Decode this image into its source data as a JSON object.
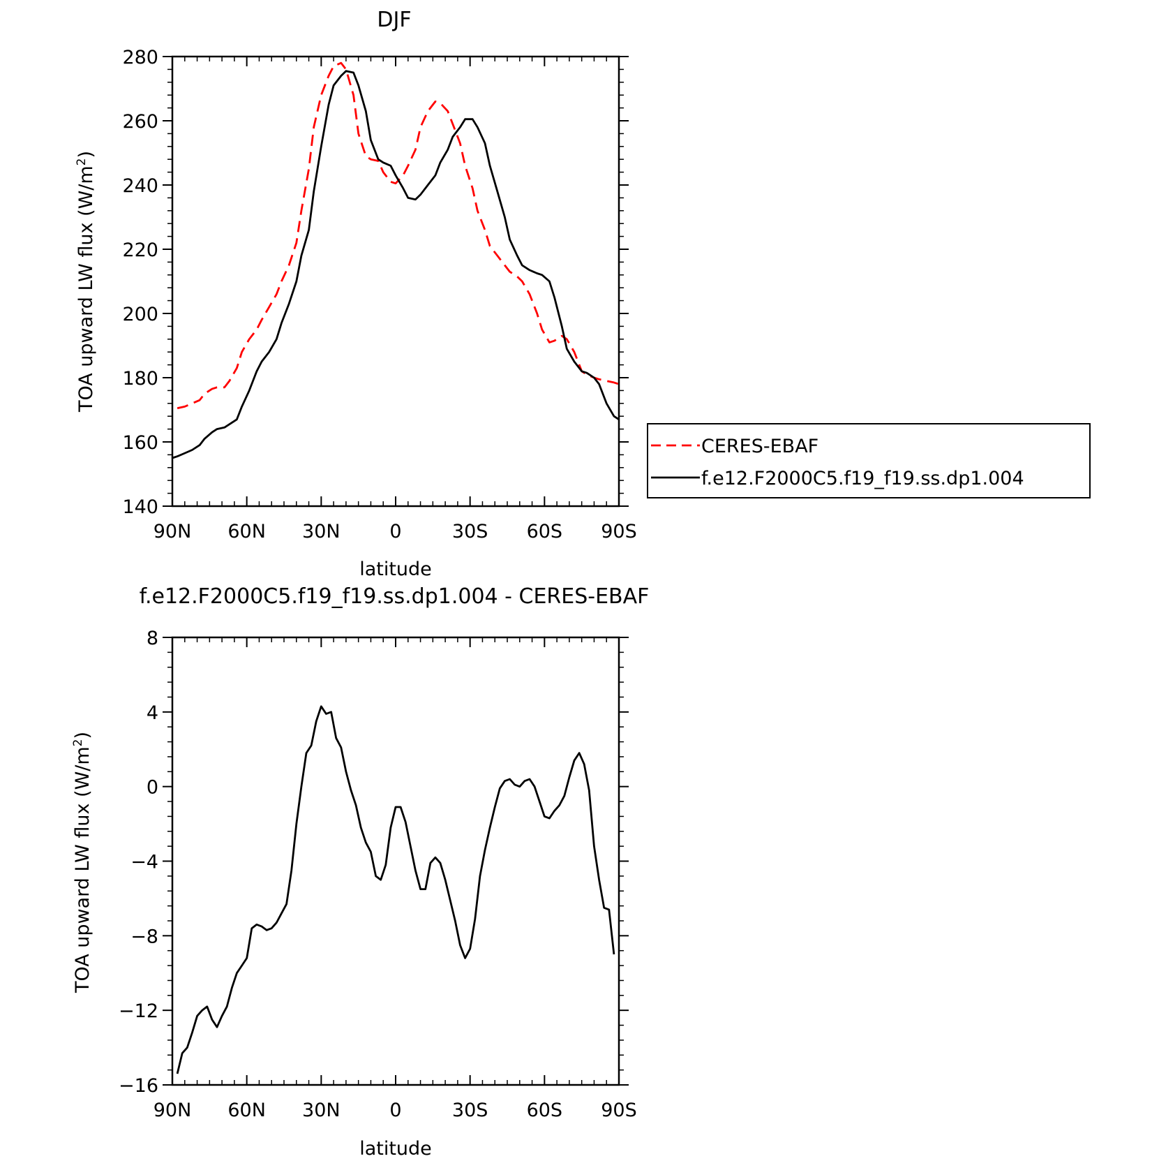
{
  "chart_data": [
    {
      "type": "line",
      "title": "DJF",
      "xlabel": "latitude",
      "ylabel_main": "TOA upward LW flux (W/m",
      "ylabel_sup": "2",
      "ylabel_close": ")",
      "xlim": [
        90,
        -90
      ],
      "ylim": [
        140,
        280
      ],
      "x_tick_values": [
        90,
        60,
        30,
        0,
        -30,
        -60,
        -90
      ],
      "x_tick_labels": [
        "90N",
        "60N",
        "30N",
        "0",
        "30S",
        "60S",
        "90S"
      ],
      "y_tick_values": [
        140,
        160,
        180,
        200,
        220,
        240,
        260,
        280
      ],
      "y_tick_labels": [
        "140",
        "160",
        "180",
        "200",
        "220",
        "240",
        "260",
        "280"
      ],
      "legend": {
        "position": "right",
        "entries": [
          "CERES-EBAF",
          "f.e12.F2000C5.f19_f19.ss.dp1.004"
        ]
      },
      "series": [
        {
          "name": "CERES-EBAF",
          "color": "#ff0000",
          "dash": "dashed",
          "x": [
            88,
            85,
            82,
            79,
            77,
            74,
            72,
            69,
            67,
            64,
            62,
            59,
            56,
            54,
            51,
            48,
            46,
            43,
            40,
            38,
            35,
            33,
            30,
            27,
            25,
            22,
            20,
            17,
            15,
            12,
            10,
            7,
            5,
            2,
            0,
            -3,
            -5,
            -8,
            -10,
            -13,
            -16,
            -18,
            -21,
            -23,
            -26,
            -28,
            -31,
            -33,
            -36,
            -38,
            -41,
            -44,
            -46,
            -49,
            -51,
            -54,
            -57,
            -59,
            -62,
            -64,
            -67,
            -69,
            -72,
            -75,
            -77,
            -80,
            -82,
            -85,
            -88,
            -90
          ],
          "y": [
            170.5,
            171,
            172,
            173,
            175,
            176.5,
            177,
            177,
            179,
            183,
            188,
            192,
            195,
            198,
            202,
            206,
            210,
            215,
            222,
            232,
            245,
            258,
            268,
            274,
            277,
            278,
            276,
            268,
            256,
            249,
            248,
            247.5,
            244,
            241,
            240.5,
            243,
            246,
            251,
            258,
            263,
            266,
            265.5,
            263,
            259,
            253,
            246,
            239,
            232,
            226,
            221,
            218,
            215,
            213,
            211.5,
            210,
            206,
            200,
            195,
            191,
            191.5,
            193,
            192,
            188,
            182,
            181,
            180,
            179.5,
            179,
            178.5,
            178
          ]
        },
        {
          "name": "f.e12.F2000C5.f19_f19.ss.dp1.004",
          "color": "#000000",
          "dash": "solid",
          "x": [
            90,
            88,
            85,
            82,
            79,
            77,
            74,
            72,
            69,
            67,
            64,
            62,
            59,
            56,
            54,
            51,
            48,
            46,
            43,
            40,
            38,
            35,
            33,
            30,
            27,
            25,
            22,
            20,
            17,
            15,
            12,
            10,
            7,
            5,
            2,
            0,
            -3,
            -5,
            -8,
            -10,
            -13,
            -16,
            -18,
            -21,
            -23,
            -26,
            -28,
            -31,
            -33,
            -36,
            -38,
            -41,
            -44,
            -46,
            -49,
            -51,
            -54,
            -57,
            -59,
            -62,
            -64,
            -67,
            -69,
            -72,
            -75,
            -77,
            -80,
            -82,
            -85,
            -88,
            -90
          ],
          "y": [
            155,
            155.5,
            156.5,
            157.5,
            159,
            161,
            163,
            164,
            164.5,
            165.5,
            167,
            171,
            176,
            182,
            185,
            188,
            192,
            197,
            203,
            210,
            218,
            226,
            238,
            252,
            265,
            271,
            274,
            275.5,
            275,
            271,
            263,
            254,
            248,
            247,
            246,
            243,
            239,
            236,
            235.5,
            237,
            240,
            243,
            247,
            251,
            255,
            258,
            260.5,
            260.5,
            258,
            253,
            246,
            238,
            230,
            223,
            218,
            215,
            213.5,
            212.5,
            212,
            210,
            205,
            196,
            189,
            185,
            182,
            181.5,
            180,
            178,
            172,
            168,
            167
          ]
        }
      ]
    },
    {
      "type": "line",
      "title": "f.e12.F2000C5.f19_f19.ss.dp1.004 - CERES-EBAF",
      "xlabel": "latitude",
      "ylabel_main": "TOA upward LW flux (W/m",
      "ylabel_sup": "2",
      "ylabel_close": ")",
      "xlim": [
        90,
        -90
      ],
      "ylim": [
        -16,
        8
      ],
      "x_tick_values": [
        90,
        60,
        30,
        0,
        -30,
        -60,
        -90
      ],
      "x_tick_labels": [
        "90N",
        "60N",
        "30N",
        "0",
        "30S",
        "60S",
        "90S"
      ],
      "y_tick_values": [
        8,
        4,
        0,
        -4,
        -8,
        -12,
        -16
      ],
      "y_tick_labels": [
        "8",
        "4",
        "0",
        "−4",
        "−8",
        "−12",
        "−16"
      ],
      "series": [
        {
          "color": "#000000",
          "dash": "solid",
          "x": [
            88,
            86,
            84,
            82,
            80,
            78,
            76,
            74,
            72,
            70,
            68,
            66,
            64,
            62,
            60,
            58,
            56,
            54,
            52,
            50,
            48,
            46,
            44,
            42,
            40,
            38,
            36,
            34,
            32,
            30,
            28,
            26,
            24,
            22,
            20,
            18,
            16,
            14,
            12,
            10,
            8,
            6,
            4,
            2,
            0,
            -2,
            -4,
            -6,
            -8,
            -10,
            -12,
            -14,
            -16,
            -18,
            -20,
            -22,
            -24,
            -26,
            -28,
            -30,
            -32,
            -34,
            -36,
            -38,
            -40,
            -42,
            -44,
            -46,
            -48,
            -50,
            -52,
            -54,
            -56,
            -58,
            -60,
            -62,
            -64,
            -66,
            -68,
            -70,
            -72,
            -74,
            -76,
            -78,
            -80,
            -82,
            -84,
            -86,
            -88
          ],
          "y": [
            -15.4,
            -14.3,
            -14,
            -13.2,
            -12.3,
            -12,
            -11.8,
            -12.5,
            -12.9,
            -12.3,
            -11.8,
            -10.8,
            -10,
            -9.6,
            -9.2,
            -7.6,
            -7.4,
            -7.5,
            -7.7,
            -7.6,
            -7.3,
            -6.8,
            -6.3,
            -4.5,
            -2,
            0,
            1.8,
            2.2,
            3.5,
            4.3,
            3.9,
            4,
            2.6,
            2.1,
            0.8,
            -0.2,
            -1,
            -2.2,
            -3,
            -3.5,
            -4.8,
            -5,
            -4.2,
            -2.2,
            -1.1,
            -1.1,
            -1.9,
            -3.2,
            -4.5,
            -5.5,
            -5.5,
            -4.1,
            -3.8,
            -4.1,
            -5,
            -6.1,
            -7.2,
            -8.5,
            -9.2,
            -8.7,
            -7.1,
            -4.8,
            -3.4,
            -2.2,
            -1.1,
            -0.1,
            0.3,
            0.4,
            0.1,
            0,
            0.3,
            0.4,
            0,
            -0.8,
            -1.6,
            -1.7,
            -1.3,
            -1.0,
            -0.5,
            0.5,
            1.4,
            1.8,
            1.2,
            -0.2,
            -3.2,
            -5,
            -6.5,
            -6.6,
            -9
          ]
        }
      ]
    }
  ]
}
